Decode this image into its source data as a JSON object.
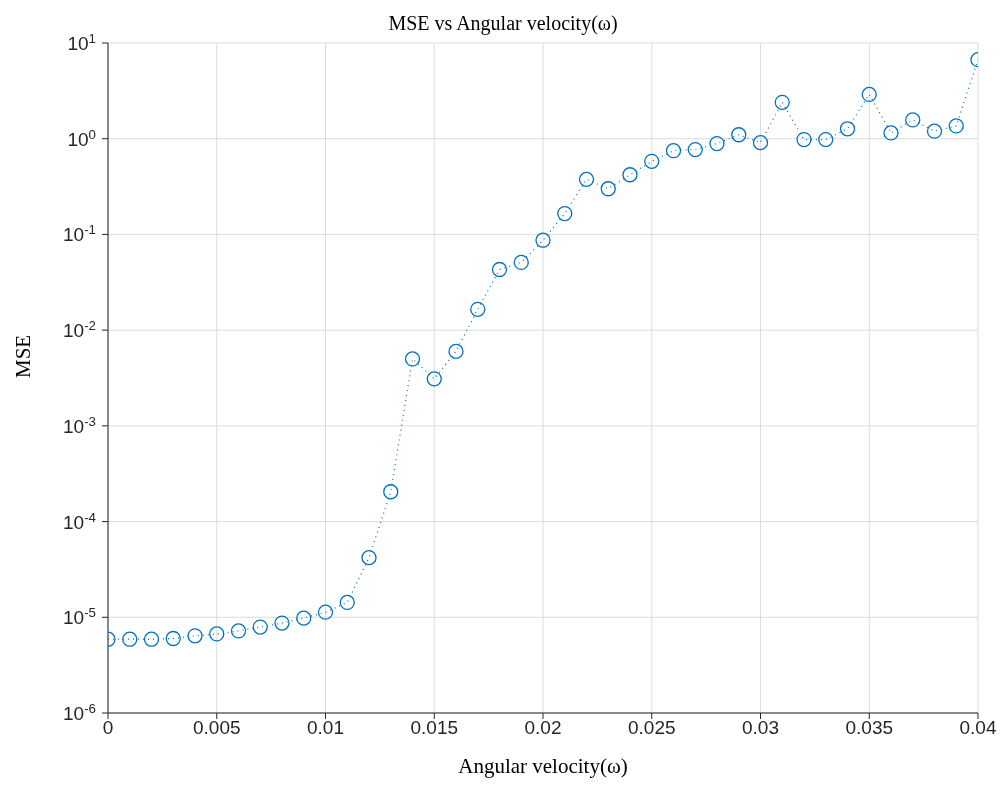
{
  "chart_data": {
    "type": "line",
    "title": "MSE vs Angular velocity(ω)",
    "xlabel": "Angular velocity(ω)",
    "ylabel": "MSE",
    "x": [
      0,
      0.001,
      0.002,
      0.003,
      0.004,
      0.005,
      0.006,
      0.007,
      0.008,
      0.009,
      0.01,
      0.011,
      0.012,
      0.013,
      0.014,
      0.015,
      0.016,
      0.017,
      0.018,
      0.019,
      0.02,
      0.021,
      0.022,
      0.023,
      0.024,
      0.025,
      0.026,
      0.027,
      0.028,
      0.029,
      0.03,
      0.031,
      0.032,
      0.033,
      0.034,
      0.035,
      0.036,
      0.037,
      0.038,
      0.039,
      0.04
    ],
    "series": [
      {
        "color": "#0072bd",
        "values": [
          5.9e-06,
          5.9e-06,
          5.9e-06,
          6e-06,
          6.4e-06,
          6.7e-06,
          7.2e-06,
          7.9e-06,
          8.7e-06,
          9.8e-06,
          1.13e-05,
          1.43e-05,
          4.2e-05,
          0.000205,
          0.005,
          0.0031,
          0.006,
          0.0165,
          0.043,
          0.051,
          0.087,
          0.165,
          0.376,
          0.3,
          0.42,
          0.58,
          0.75,
          0.77,
          0.89,
          1.1,
          0.91,
          2.4,
          0.98,
          0.98,
          1.27,
          2.9,
          1.15,
          1.57,
          1.2,
          1.36,
          6.7
        ]
      }
    ],
    "xlim": [
      0,
      0.04
    ],
    "xticks": [
      0,
      0.005,
      0.01,
      0.015,
      0.02,
      0.025,
      0.03,
      0.035,
      0.04
    ],
    "ylim": [
      1e-06,
      10
    ],
    "yticks": [
      {
        "value": 1e-06,
        "label": "10$^{-6}$"
      },
      {
        "value": 1e-05,
        "label": "10$^{-5}$"
      },
      {
        "value": 0.0001,
        "label": "10$^{-4}$"
      },
      {
        "value": 0.001,
        "label": "10$^{-3}$"
      },
      {
        "value": 0.01,
        "label": "10$^{-2}$"
      },
      {
        "value": 0.1,
        "label": "10$^{-1}$"
      },
      {
        "value": 1,
        "label": "10$^{0}$"
      },
      {
        "value": 10,
        "label": "10$^{1}$"
      }
    ],
    "log": true,
    "grid": true,
    "marker": "circle",
    "line_style": "dotted"
  }
}
